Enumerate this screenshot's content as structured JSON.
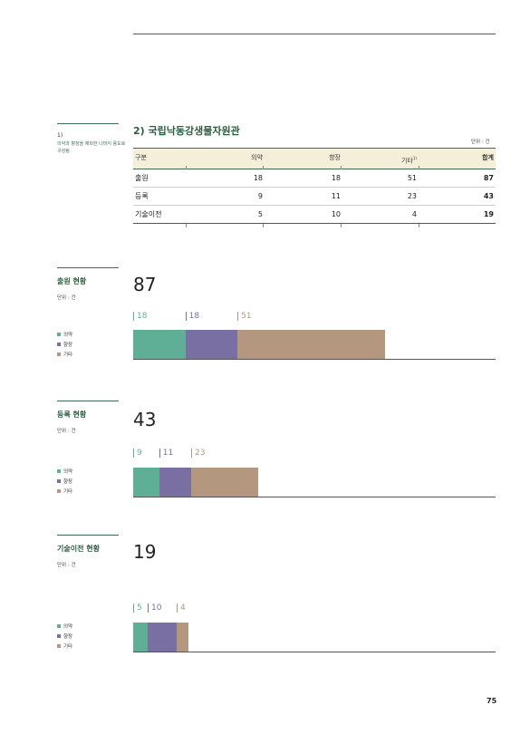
{
  "section": {
    "title": "2) 국립낙동강생물자원관",
    "unit": "단위 : 건"
  },
  "footnote": {
    "number": "1)",
    "text": "의약과 향장을 제외한 나머지 용도로 구성됨"
  },
  "table": {
    "headers": [
      "구분",
      "의약",
      "향장",
      "기타",
      "합계"
    ],
    "header_sup": "1)",
    "rows": [
      {
        "label": "출원",
        "values": [
          "18",
          "18",
          "51",
          "87"
        ]
      },
      {
        "label": "등록",
        "values": [
          "9",
          "11",
          "23",
          "43"
        ]
      },
      {
        "label": "기술이전",
        "values": [
          "5",
          "10",
          "4",
          "19"
        ]
      }
    ]
  },
  "colors": {
    "medicine": "#5fae96",
    "cosmetic": "#7a6fa2",
    "other": "#b3977e",
    "accent": "#2e5e3f"
  },
  "chart_data": [
    {
      "type": "bar",
      "stacked": true,
      "orientation": "horizontal",
      "title": "출원 현황",
      "unit": "단위 : 건",
      "total": 87,
      "legend": [
        "의약",
        "향장",
        "기타"
      ],
      "values": [
        18,
        18,
        51
      ],
      "labels": [
        "18",
        "18",
        "51"
      ]
    },
    {
      "type": "bar",
      "stacked": true,
      "orientation": "horizontal",
      "title": "등록 현황",
      "unit": "단위 : 건",
      "total": 43,
      "legend": [
        "의약",
        "향장",
        "기타"
      ],
      "values": [
        9,
        11,
        23
      ],
      "labels": [
        "9",
        "11",
        "23"
      ]
    },
    {
      "type": "bar",
      "stacked": true,
      "orientation": "horizontal",
      "title": "기술이전 현황",
      "unit": "단위 : 건",
      "total": 19,
      "legend": [
        "의약",
        "향장",
        "기타"
      ],
      "values": [
        5,
        10,
        4
      ],
      "labels": [
        "5",
        "10",
        "4"
      ]
    }
  ],
  "page_number": "75"
}
